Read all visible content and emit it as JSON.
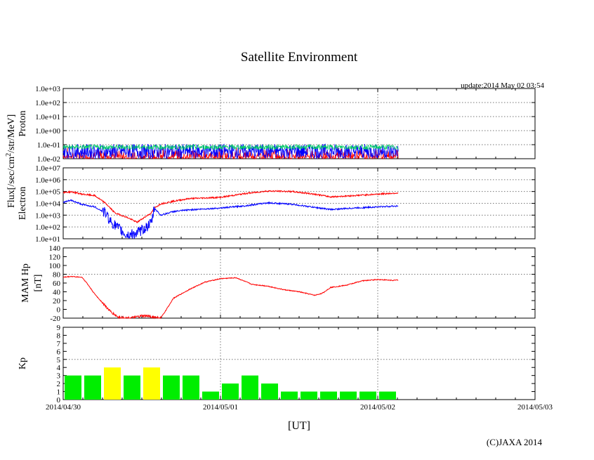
{
  "title": "Satellite Environment",
  "update": "update:2014 May 02 03:54",
  "copyright": "(C)JAXA 2014",
  "xlabel": "[UT]",
  "xticks": [
    "2014/04/30",
    "2014/05/01",
    "2014/05/02",
    "2014/05/03"
  ],
  "flux_label_main": "Flux[/sec/cm",
  "flux_label_sup": "2",
  "flux_label_tail": "/str/MeV]",
  "colors": {
    "red": "#ff0000",
    "blue": "#0000ff",
    "green": "#00cc66",
    "kp_green": "#00ee00",
    "kp_yellow": "#ffff00"
  },
  "chart_data": [
    {
      "type": "line",
      "ylabel": "Proton",
      "yscale": "log",
      "ylim": [
        0.01,
        1000
      ],
      "yticks": [
        "1.0e-02",
        "1.0e-01",
        "1.0e+00",
        "1.0e+01",
        "1.0e+02",
        "1.0e+03"
      ],
      "x_days": [
        0,
        3
      ],
      "series": [
        {
          "color": "red",
          "x": [
            0,
            0.5,
            1.0,
            1.5,
            2.0,
            2.13
          ],
          "y": [
            0.012,
            0.012,
            0.012,
            0.012,
            0.012,
            0.012
          ],
          "note_range": [
            0.01,
            0.03
          ]
        },
        {
          "color": "blue",
          "x": [
            0,
            0.5,
            1.0,
            1.5,
            2.0,
            2.13
          ],
          "y": [
            0.05,
            0.05,
            0.05,
            0.05,
            0.05,
            0.05
          ],
          "note_range": [
            0.01,
            0.1
          ]
        },
        {
          "color": "green",
          "x": [
            0,
            0.5,
            1.0,
            1.5,
            2.0,
            2.13
          ],
          "y": [
            0.06,
            0.06,
            0.06,
            0.06,
            0.06,
            0.06
          ]
        }
      ]
    },
    {
      "type": "line",
      "ylabel": "Electron",
      "yscale": "log",
      "ylim": [
        10,
        10000000
      ],
      "yticks": [
        "1.0e+01",
        "1.0e+02",
        "1.0e+03",
        "1.0e+04",
        "1.0e+05",
        "1.0e+06",
        "1.0e+07"
      ],
      "series": [
        {
          "color": "red",
          "x": [
            0,
            0.05,
            0.12,
            0.2,
            0.27,
            0.33,
            0.4,
            0.47,
            0.52,
            0.56,
            0.58,
            0.62,
            0.7,
            0.8,
            1.0,
            1.15,
            1.3,
            1.45,
            1.6,
            1.7,
            1.85,
            2.0,
            2.13
          ],
          "y": [
            80000,
            95000,
            60000,
            45000,
            10000,
            1500,
            700,
            250,
            700,
            1500,
            4000,
            9000,
            15000,
            25000,
            32000,
            65000,
            110000,
            100000,
            60000,
            35000,
            45000,
            60000,
            75000
          ]
        },
        {
          "color": "blue",
          "x": [
            0,
            0.05,
            0.12,
            0.2,
            0.27,
            0.3,
            0.35,
            0.4,
            0.47,
            0.52,
            0.56,
            0.58,
            0.62,
            0.7,
            0.8,
            1.0,
            1.15,
            1.3,
            1.45,
            1.6,
            1.7,
            1.85,
            2.0,
            2.13
          ],
          "y": [
            12000,
            18000,
            8000,
            5000,
            1500,
            300,
            80,
            20,
            30,
            80,
            200,
            4000,
            1000,
            2000,
            2800,
            4000,
            6000,
            11000,
            8500,
            4500,
            3000,
            4000,
            5000,
            6000
          ]
        }
      ]
    },
    {
      "type": "line",
      "ylabel": "MAM Hp",
      "ylabel2": "[nT]",
      "ylim": [
        -20,
        140
      ],
      "yticks": [
        "-20",
        "0",
        "20",
        "40",
        "60",
        "80",
        "100",
        "120",
        "140"
      ],
      "series": [
        {
          "color": "red",
          "x": [
            0,
            0.05,
            0.12,
            0.15,
            0.2,
            0.25,
            0.3,
            0.35,
            0.4,
            0.45,
            0.5,
            0.55,
            0.62,
            0.65,
            0.7,
            0.8,
            0.9,
            1.0,
            1.1,
            1.2,
            1.3,
            1.4,
            1.5,
            1.6,
            1.65,
            1.7,
            1.8,
            1.9,
            2.0,
            2.1,
            2.13
          ],
          "y": [
            73,
            75,
            73,
            60,
            35,
            15,
            -5,
            -18,
            -20,
            -19,
            -15,
            -16,
            -20,
            -4,
            25,
            45,
            62,
            70,
            72,
            57,
            53,
            45,
            40,
            32,
            37,
            50,
            55,
            65,
            68,
            66,
            67
          ]
        }
      ]
    },
    {
      "type": "bar",
      "ylabel": "Kp",
      "ylim": [
        0,
        9
      ],
      "yticks": [
        "0",
        "1",
        "2",
        "3",
        "4",
        "5",
        "6",
        "7",
        "8",
        "9"
      ],
      "bin_hours": 3,
      "values": [
        3,
        3,
        4,
        3,
        4,
        3,
        3,
        1,
        2,
        3,
        2,
        1,
        1,
        1,
        1,
        1,
        1
      ],
      "highlight_threshold": 4
    }
  ]
}
